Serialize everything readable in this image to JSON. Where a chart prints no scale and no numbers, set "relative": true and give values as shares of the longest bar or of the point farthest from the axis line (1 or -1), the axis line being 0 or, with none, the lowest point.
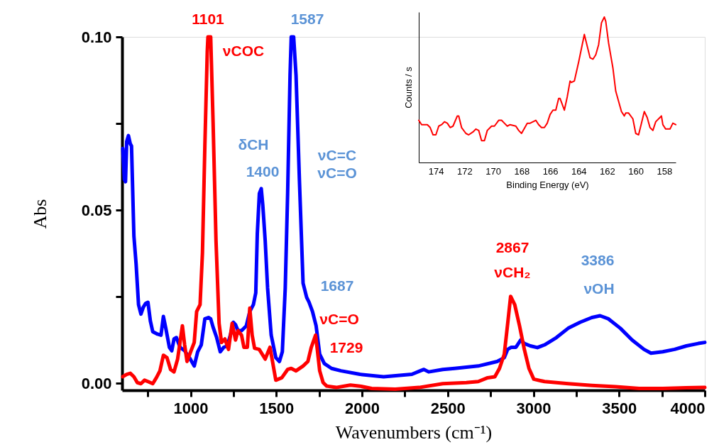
{
  "chart_data": [
    {
      "type": "line",
      "xlabel": "Wavenumbers (cm⁻¹)",
      "ylabel": "Abs",
      "xlim": [
        600,
        4000
      ],
      "ylim": [
        -0.002,
        0.1
      ],
      "xticks": [
        {
          "value": 750,
          "label": null
        },
        1000,
        {
          "value": 1250,
          "label": null
        },
        1500,
        {
          "value": 1750,
          "label": null
        },
        2000,
        {
          "value": 2250,
          "label": null
        },
        2500,
        {
          "value": 2750,
          "label": null
        },
        3000,
        {
          "value": 3250,
          "label": null
        },
        3500,
        {
          "value": 3750,
          "label": null
        },
        4000
      ],
      "yticks": [
        {
          "value": 0,
          "label": "0.00"
        },
        {
          "value": 0.025,
          "label": null
        },
        {
          "value": 0.05,
          "label": "0.05"
        },
        {
          "value": 0.075,
          "label": null
        },
        {
          "value": 0.1,
          "label": "0.10"
        }
      ],
      "grid": false,
      "series": [
        {
          "color": "#0000ff",
          "x": [
            604,
            613,
            620,
            627,
            637,
            648,
            655,
            669,
            682,
            696,
            710,
            724,
            738,
            751,
            765,
            779,
            807,
            827,
            841,
            855,
            876,
            890,
            903,
            917,
            938,
            965,
            993,
            1021,
            1041,
            1062,
            1083,
            1104,
            1117,
            1131,
            1152,
            1173,
            1193,
            1214,
            1235,
            1249,
            1262,
            1276,
            1297,
            1325,
            1345,
            1366,
            1380,
            1389,
            1401,
            1412,
            1421,
            1435,
            1449,
            1470,
            1497,
            1518,
            1535,
            1552,
            1566,
            1580,
            1587,
            1601,
            1615,
            1635,
            1656,
            1677,
            1691,
            1711,
            1732,
            1753,
            1780,
            1822,
            1877,
            1987,
            2126,
            2291,
            2340,
            2361,
            2389,
            2471,
            2540,
            2678,
            2788,
            2830,
            2850,
            2871,
            2898,
            2926,
            2947,
            2982,
            3023,
            3065,
            3134,
            3203,
            3272,
            3341,
            3389,
            3438,
            3507,
            3576,
            3645,
            3686,
            3755,
            3824,
            3893,
            3962,
            4000
          ],
          "values": [
            0.0678,
            0.0589,
            0.0582,
            0.0698,
            0.0715,
            0.0691,
            0.0685,
            0.0425,
            0.0343,
            0.0227,
            0.02,
            0.022,
            0.0231,
            0.0234,
            0.018,
            0.0149,
            0.0142,
            0.0139,
            0.0193,
            0.0159,
            0.0104,
            0.0094,
            0.0128,
            0.0132,
            0.0104,
            0.0094,
            0.0074,
            0.005,
            0.0091,
            0.0111,
            0.0186,
            0.019,
            0.0186,
            0.0162,
            0.0132,
            0.0091,
            0.0104,
            0.0108,
            0.0145,
            0.0176,
            0.0169,
            0.0152,
            0.0152,
            0.0166,
            0.0207,
            0.0227,
            0.0261,
            0.0432,
            0.0548,
            0.0562,
            0.0514,
            0.0412,
            0.0275,
            0.0139,
            0.0074,
            0.0063,
            0.0091,
            0.0275,
            0.0548,
            0.0889,
            0.1,
            0.1,
            0.0889,
            0.0582,
            0.0289,
            0.0248,
            0.0234,
            0.0207,
            0.0166,
            0.0084,
            0.0057,
            0.0043,
            0.0036,
            0.0026,
            0.0019,
            0.0026,
            0.0036,
            0.004,
            0.0033,
            0.004,
            0.0043,
            0.005,
            0.0063,
            0.0074,
            0.0098,
            0.0104,
            0.0104,
            0.0125,
            0.0115,
            0.0108,
            0.0103,
            0.0111,
            0.0132,
            0.0159,
            0.0176,
            0.019,
            0.0195,
            0.0186,
            0.0159,
            0.0125,
            0.0098,
            0.0087,
            0.0091,
            0.0098,
            0.0108,
            0.0115,
            0.0118
          ]
        },
        {
          "color": "#ff0000",
          "x": [
            604,
            627,
            648,
            669,
            689,
            710,
            731,
            751,
            779,
            800,
            821,
            841,
            862,
            883,
            903,
            924,
            938,
            952,
            965,
            979,
            1000,
            1021,
            1035,
            1055,
            1069,
            1083,
            1097,
            1101,
            1117,
            1131,
            1148,
            1166,
            1180,
            1200,
            1221,
            1242,
            1262,
            1276,
            1297,
            1311,
            1331,
            1345,
            1359,
            1373,
            1400,
            1435,
            1463,
            1497,
            1532,
            1566,
            1587,
            1615,
            1656,
            1684,
            1704,
            1729,
            1739,
            1753,
            1773,
            1794,
            1849,
            1932,
            1987,
            2056,
            2194,
            2333,
            2471,
            2609,
            2678,
            2733,
            2775,
            2802,
            2830,
            2850,
            2867,
            2891,
            2919,
            2947,
            2974,
            3002,
            3065,
            3203,
            3341,
            3479,
            3617,
            3755,
            3893,
            4000
          ],
          "values": [
            0.0019,
            0.0026,
            0.0029,
            0.0019,
            0.0002,
            -0.0001,
            0.0009,
            0.0005,
            -0.0001,
            0.0016,
            0.0036,
            0.0081,
            0.0074,
            0.004,
            0.0033,
            0.007,
            0.0118,
            0.0166,
            0.0111,
            0.0063,
            0.0091,
            0.0118,
            0.0207,
            0.0227,
            0.0377,
            0.0685,
            0.0958,
            0.1,
            0.1,
            0.0753,
            0.0412,
            0.0173,
            0.0118,
            0.0128,
            0.0098,
            0.0173,
            0.0125,
            0.0152,
            0.0139,
            0.0104,
            0.0104,
            0.0217,
            0.0139,
            0.0101,
            0.0098,
            0.007,
            0.0104,
            0.0009,
            0.0016,
            0.004,
            0.0043,
            0.0036,
            0.005,
            0.0063,
            0.0104,
            0.0139,
            0.0098,
            0.0036,
            0.0002,
            -0.0008,
            -0.0012,
            -0.0005,
            -0.0008,
            -0.0015,
            -0.0017,
            -0.0012,
            -0.0001,
            0.0002,
            0.0005,
            0.0016,
            0.0019,
            0.0043,
            0.0084,
            0.0173,
            0.0251,
            0.0227,
            0.0166,
            0.0098,
            0.0043,
            0.0012,
            0.0005,
            -0.0001,
            -0.0006,
            -0.001,
            -0.0015,
            -0.0015,
            -0.0013,
            -0.0012
          ]
        }
      ],
      "annotations": [
        "1101",
        "νCOC",
        "1587",
        "δCH",
        "1400",
        "νC=C",
        "νC=O",
        "1687",
        "νC=O",
        "1729",
        "2867",
        "νCH₂",
        "3386",
        "νOH"
      ]
    },
    {
      "type": "line",
      "xlabel": "Binding Energy (eV)",
      "ylabel": "Counts / s",
      "relative": true,
      "xlim": [
        175.2,
        157.2
      ],
      "xticks": [
        174,
        172,
        170,
        168,
        166,
        164,
        162,
        160,
        158
      ],
      "grid": false,
      "series": [
        {
          "color": "#ff0000",
          "x": [
            175.2,
            175.0,
            174.6,
            174.4,
            174.2,
            174.0,
            173.8,
            173.6,
            173.4,
            173.2,
            173.0,
            172.8,
            172.5,
            172.4,
            172.2,
            171.9,
            171.7,
            171.4,
            171.2,
            171.0,
            170.8,
            170.6,
            170.4,
            170.1,
            169.9,
            169.6,
            169.4,
            169.2,
            169.0,
            168.8,
            168.4,
            168.2,
            168.0,
            167.6,
            167.4,
            167.2,
            167.0,
            166.8,
            166.6,
            166.4,
            166.2,
            166.0,
            165.8,
            165.6,
            165.4,
            165.3,
            165.0,
            164.8,
            164.6,
            164.5,
            164.3,
            164.0,
            163.6,
            163.5,
            163.2,
            163.0,
            162.8,
            162.6,
            162.4,
            162.2,
            162.1,
            161.9,
            161.6,
            161.4,
            161.0,
            160.8,
            160.7,
            160.5,
            160.2,
            160.0,
            159.8,
            159.6,
            159.4,
            159.2,
            159.0,
            158.8,
            158.6,
            158.3,
            158.2,
            158.1,
            157.9,
            157.6,
            157.4,
            157.2
          ],
          "values": [
            0.29,
            0.26,
            0.26,
            0.24,
            0.19,
            0.19,
            0.25,
            0.26,
            0.28,
            0.27,
            0.24,
            0.25,
            0.32,
            0.32,
            0.24,
            0.2,
            0.19,
            0.21,
            0.23,
            0.22,
            0.15,
            0.15,
            0.22,
            0.25,
            0.25,
            0.29,
            0.29,
            0.27,
            0.25,
            0.26,
            0.25,
            0.22,
            0.2,
            0.27,
            0.27,
            0.28,
            0.29,
            0.26,
            0.24,
            0.24,
            0.27,
            0.33,
            0.36,
            0.36,
            0.44,
            0.44,
            0.36,
            0.45,
            0.56,
            0.55,
            0.56,
            0.69,
            0.88,
            0.84,
            0.72,
            0.71,
            0.74,
            0.81,
            0.96,
            1.0,
            0.97,
            0.82,
            0.65,
            0.49,
            0.35,
            0.32,
            0.34,
            0.34,
            0.3,
            0.2,
            0.19,
            0.27,
            0.35,
            0.31,
            0.24,
            0.22,
            0.28,
            0.31,
            0.32,
            0.26,
            0.23,
            0.23,
            0.27,
            0.26
          ]
        }
      ]
    }
  ]
}
